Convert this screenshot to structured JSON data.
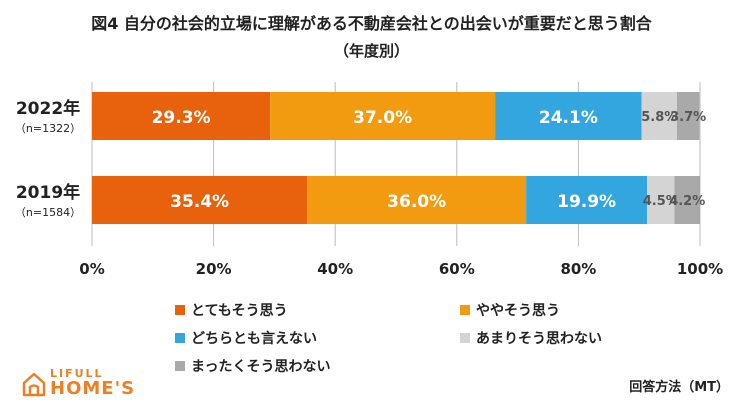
{
  "chart_data": {
    "type": "bar",
    "orientation": "horizontal",
    "stacked": true,
    "title": "図4 自分の社会的立場に理解がある不動産会社との出会いが重要だと思う割合",
    "subtitle": "（年度別）",
    "categories": [
      {
        "label": "2022年",
        "sublabel": "（n=1322）"
      },
      {
        "label": "2019年",
        "sublabel": "（n=1584）"
      }
    ],
    "series": [
      {
        "name": "とてもそう思う",
        "color": "#E8620E",
        "label_color": "#ffffff",
        "values": [
          29.3,
          35.4
        ]
      },
      {
        "name": "ややそう思う",
        "color": "#F29A10",
        "label_color": "#ffffff",
        "values": [
          37.0,
          36.0
        ]
      },
      {
        "name": "どちらとも言えない",
        "color": "#33A6E0",
        "label_color": "#ffffff",
        "values": [
          24.1,
          19.9
        ]
      },
      {
        "name": "あまりそう思わない",
        "color": "#D4D4D4",
        "label_color": "#555555",
        "values": [
          5.8,
          4.5
        ]
      },
      {
        "name": "まったくそう思わない",
        "color": "#A9A9A9",
        "label_color": "#555555",
        "values": [
          3.7,
          4.2
        ]
      }
    ],
    "value_suffix": "%",
    "xlim": [
      0,
      100
    ],
    "xticks": [
      "0%",
      "20%",
      "40%",
      "60%",
      "80%",
      "100%"
    ],
    "grid": true,
    "legend_position": "bottom"
  },
  "logo": {
    "top_text": "LIFULL",
    "main_text": "HOME'S"
  },
  "source_text": "回答方法（MT）",
  "colors": {
    "brand": "#EE7F22",
    "gridline": "#BBBBBB"
  }
}
